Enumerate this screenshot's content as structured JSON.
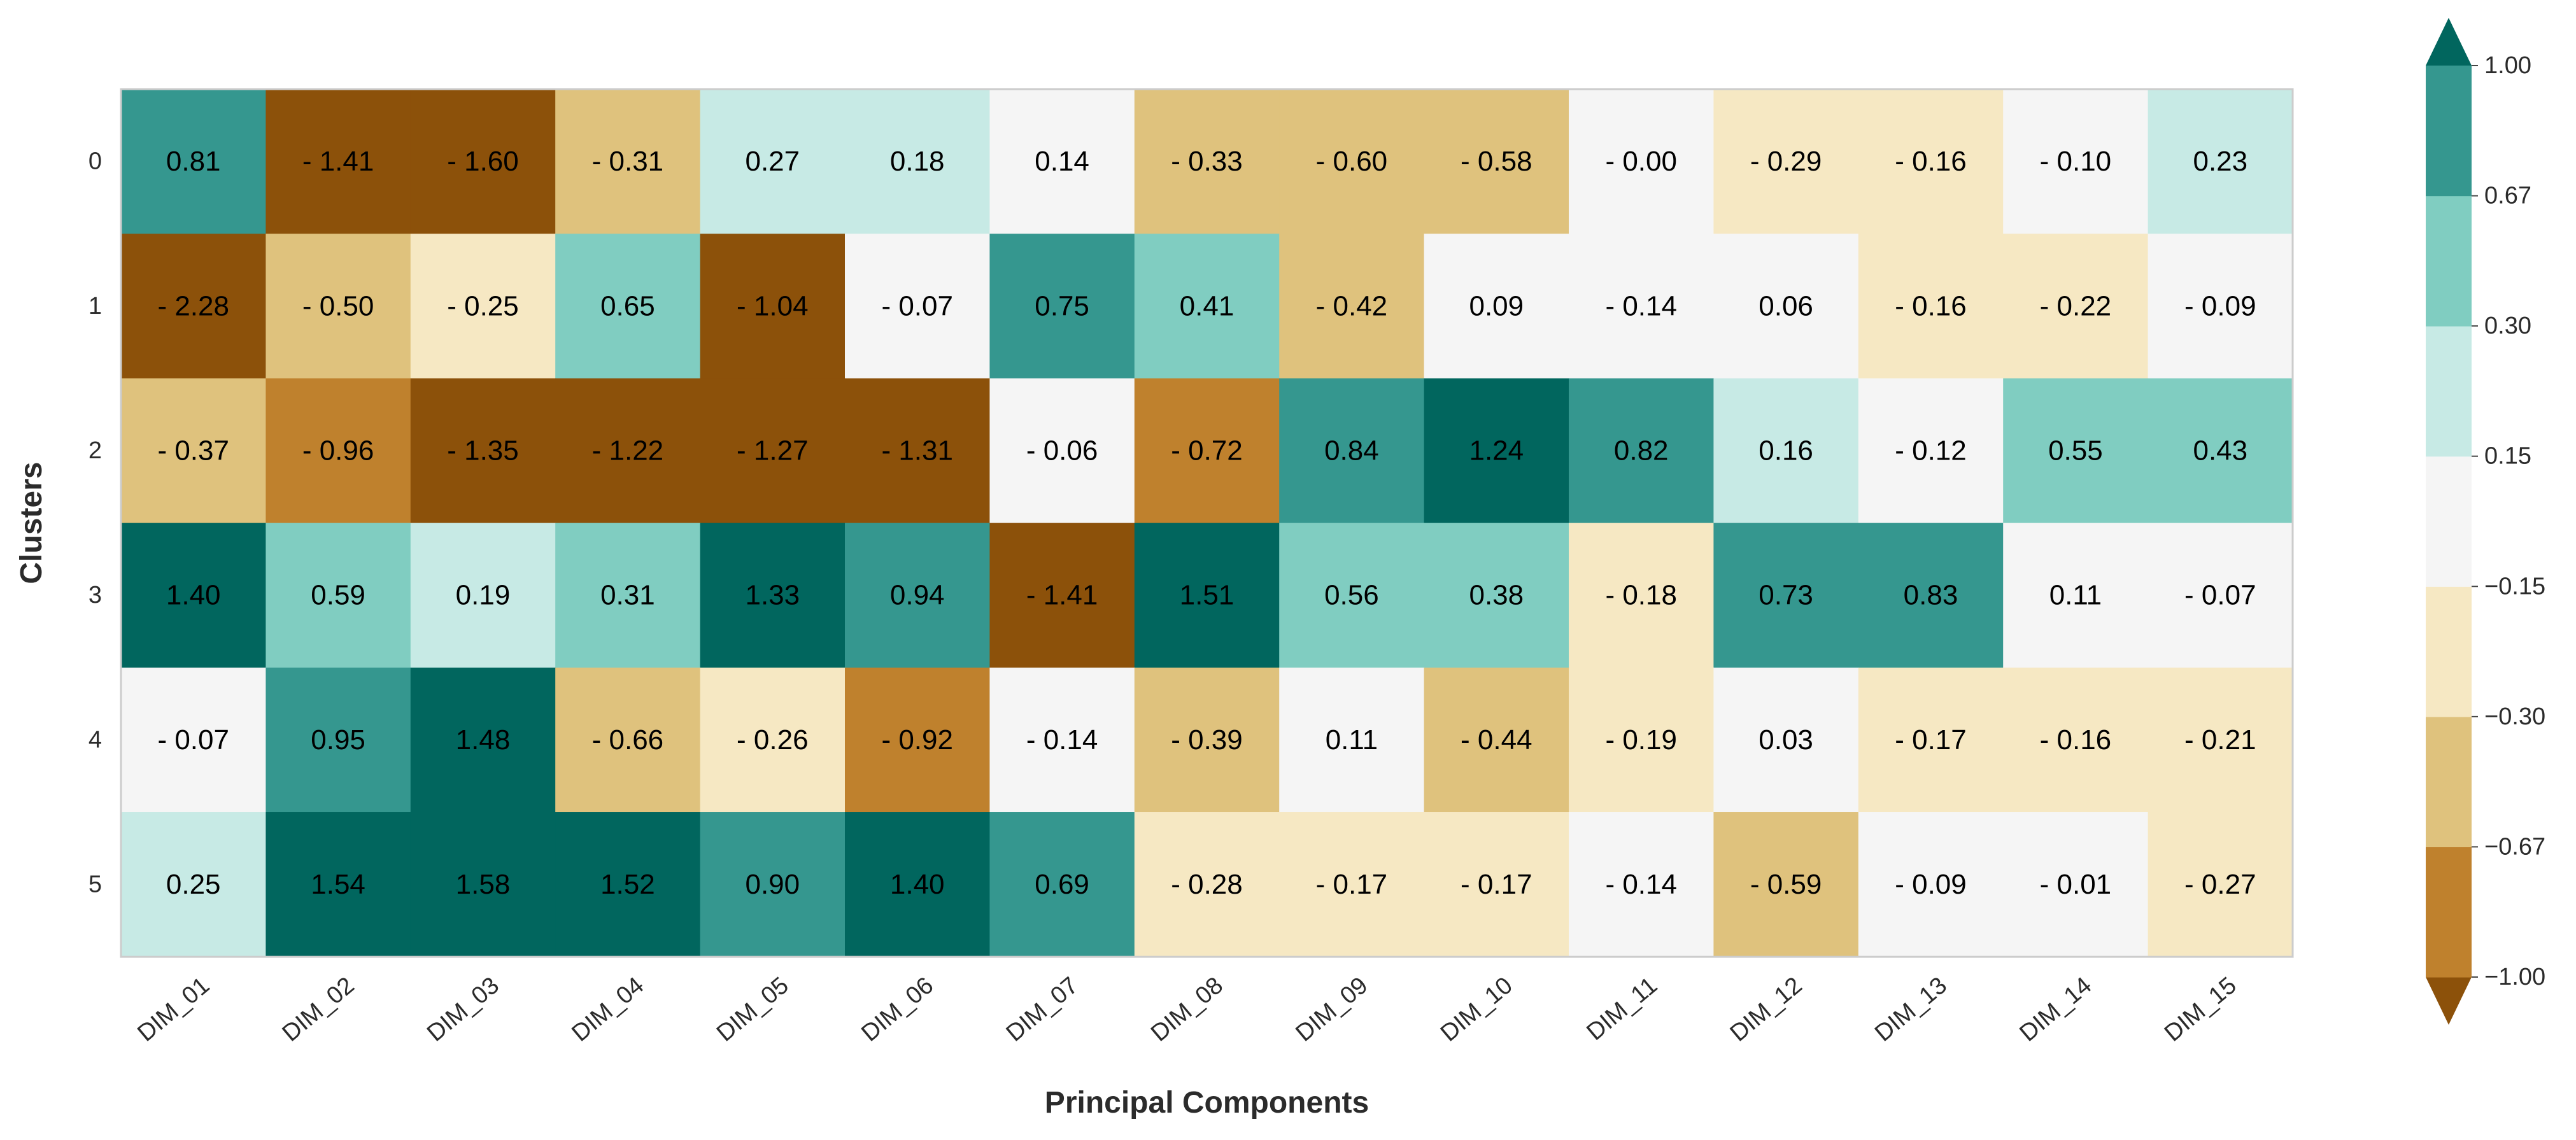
{
  "chart_data": {
    "type": "heatmap",
    "title": "",
    "xlabel": "Principal Components",
    "ylabel": "Clusters",
    "x_categories": [
      "DIM_01",
      "DIM_02",
      "DIM_03",
      "DIM_04",
      "DIM_05",
      "DIM_06",
      "DIM_07",
      "DIM_08",
      "DIM_09",
      "DIM_10",
      "DIM_11",
      "DIM_12",
      "DIM_13",
      "DIM_14",
      "DIM_15"
    ],
    "y_categories": [
      "0",
      "1",
      "2",
      "3",
      "4",
      "5"
    ],
    "values": [
      [
        0.81,
        -1.41,
        -1.6,
        -0.31,
        0.27,
        0.18,
        0.14,
        -0.33,
        -0.6,
        -0.58,
        -0.0,
        -0.29,
        -0.16,
        -0.1,
        0.23
      ],
      [
        -2.28,
        -0.5,
        -0.25,
        0.65,
        -1.04,
        -0.07,
        0.75,
        0.41,
        -0.42,
        0.09,
        -0.14,
        0.06,
        -0.16,
        -0.22,
        -0.09
      ],
      [
        -0.37,
        -0.96,
        -1.35,
        -1.22,
        -1.27,
        -1.31,
        -0.06,
        -0.72,
        0.84,
        1.24,
        0.82,
        0.16,
        -0.12,
        0.55,
        0.43
      ],
      [
        1.4,
        0.59,
        0.19,
        0.31,
        1.33,
        0.94,
        -1.41,
        1.51,
        0.56,
        0.38,
        -0.18,
        0.73,
        0.83,
        0.11,
        -0.07
      ],
      [
        -0.07,
        0.95,
        1.48,
        -0.66,
        -0.26,
        -0.92,
        -0.14,
        -0.39,
        0.11,
        -0.44,
        -0.19,
        0.03,
        -0.17,
        -0.16,
        -0.21
      ],
      [
        0.25,
        1.54,
        1.58,
        1.52,
        0.9,
        1.4,
        0.69,
        -0.28,
        -0.17,
        -0.17,
        -0.14,
        -0.59,
        -0.09,
        -0.01,
        -0.27
      ]
    ],
    "cell_labels": [
      [
        "0.81",
        "- 1.41",
        "- 1.60",
        "- 0.31",
        "0.27",
        "0.18",
        "0.14",
        "- 0.33",
        "- 0.60",
        "- 0.58",
        "- 0.00",
        "- 0.29",
        "- 0.16",
        "- 0.10",
        "0.23"
      ],
      [
        "- 2.28",
        "- 0.50",
        "- 0.25",
        "0.65",
        "- 1.04",
        "- 0.07",
        "0.75",
        "0.41",
        "- 0.42",
        "0.09",
        "- 0.14",
        "0.06",
        "- 0.16",
        "- 0.22",
        "- 0.09"
      ],
      [
        "- 0.37",
        "- 0.96",
        "- 1.35",
        "- 1.22",
        "- 1.27",
        "- 1.31",
        "- 0.06",
        "- 0.72",
        "0.84",
        "1.24",
        "0.82",
        "0.16",
        "- 0.12",
        "0.55",
        "0.43"
      ],
      [
        "1.40",
        "0.59",
        "0.19",
        "0.31",
        "1.33",
        "0.94",
        "- 1.41",
        "1.51",
        "0.56",
        "0.38",
        "- 0.18",
        "0.73",
        "0.83",
        "0.11",
        "- 0.07"
      ],
      [
        "- 0.07",
        "0.95",
        "1.48",
        "- 0.66",
        "- 0.26",
        "- 0.92",
        "- 0.14",
        "- 0.39",
        "0.11",
        "- 0.44",
        "- 0.19",
        "0.03",
        "- 0.17",
        "- 0.16",
        "- 0.21"
      ],
      [
        "0.25",
        "1.54",
        "1.58",
        "1.52",
        "0.90",
        "1.40",
        "0.69",
        "- 0.28",
        "- 0.17",
        "- 0.17",
        "- 0.14",
        "- 0.59",
        "- 0.09",
        "- 0.01",
        "- 0.27"
      ]
    ],
    "colorbar": {
      "boundaries": [
        -1.0,
        -0.67,
        -0.3,
        -0.15,
        0.15,
        0.3,
        0.67,
        1.0
      ],
      "tick_labels": [
        "1.00",
        "0.67",
        "0.30",
        "0.15",
        "−0.15",
        "−0.30",
        "−0.67",
        "−1.00"
      ],
      "colors": [
        "#bf812d",
        "#dfc27d",
        "#f6e8c3",
        "#f5f5f5",
        "#c7eae5",
        "#80cdc1",
        "#35978f"
      ],
      "under_color": "#8c510a",
      "over_color": "#01665e",
      "extend": "both"
    }
  }
}
